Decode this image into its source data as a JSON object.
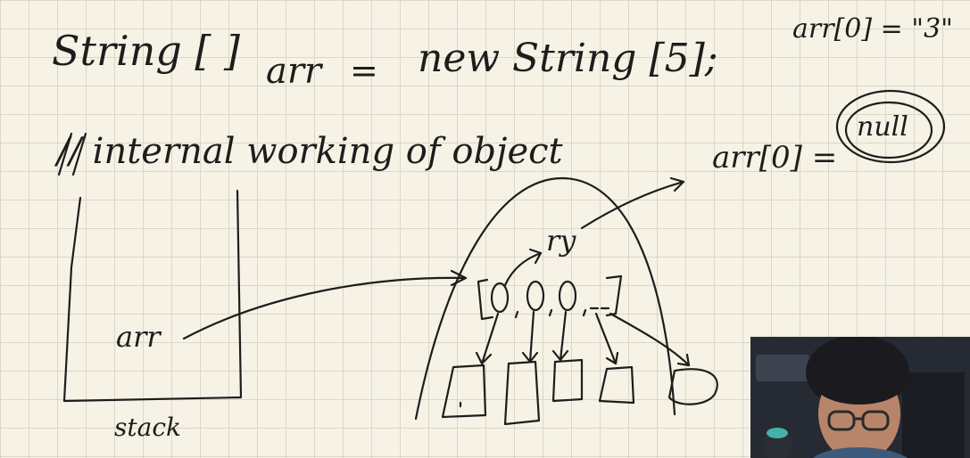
{
  "board": {
    "line1": {
      "type": "String [ ]",
      "var": "arr",
      "equals": "=",
      "rhs": "new String [5];"
    },
    "comment": "// internal working of object",
    "note_top_right": "arr[0] = \"3\"",
    "note_right": "arr[0] =",
    "null_label": "null",
    "stack_var": "arr",
    "stack_label": "stack",
    "heap_str": "ry",
    "array_cells": [
      "0",
      "0",
      "0",
      "...",
      ""
    ],
    "ink_color": "#1d1d1d",
    "grid_color": "#dcd6c6",
    "background_color": "#f6f2e6"
  },
  "webcam": {
    "icon": "presenter-webcam"
  }
}
